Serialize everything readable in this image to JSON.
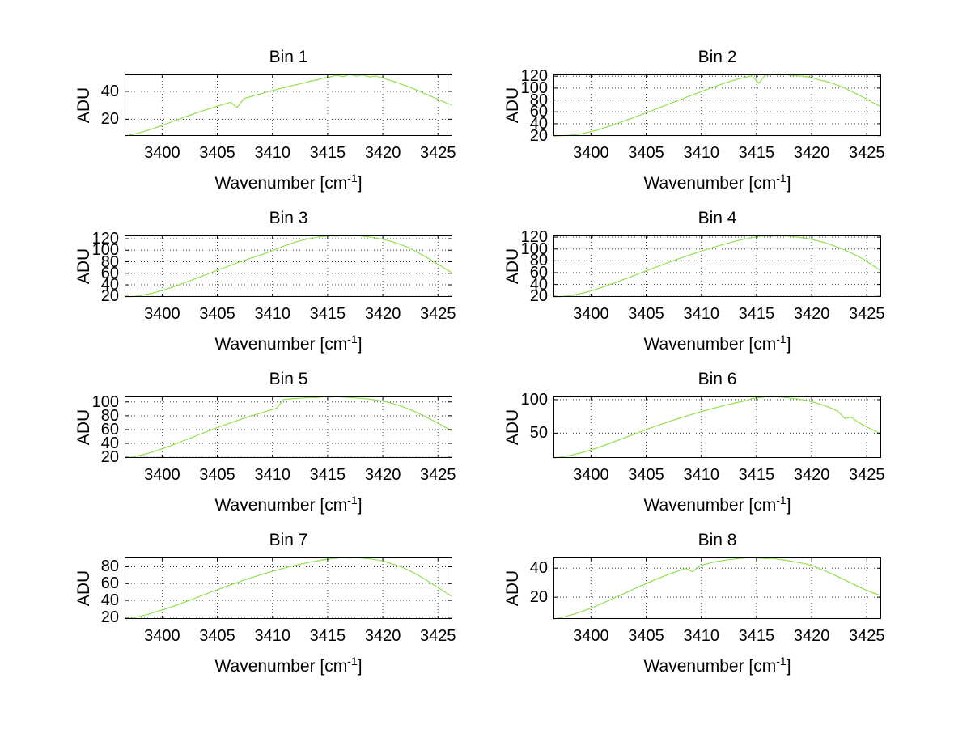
{
  "figure": {
    "background_color": "#ffffff",
    "line_color": "#90e050",
    "grid_color": "#404040",
    "axis_color": "#000000"
  },
  "chart_data": {
    "type": "line",
    "layout": "8 subplots (4 rows x 2 columns)",
    "grid": "on, dotted",
    "legend": "none",
    "xlabel_prefix": "Wavenumber [cm",
    "xlabel_sup": "-1",
    "xlabel_suffix": "]",
    "ylabel": "ADU",
    "xticks": [
      3400,
      3405,
      3410,
      3415,
      3420,
      3425
    ],
    "xlim": [
      3396.6,
      3426.3
    ],
    "x": [
      3396.6,
      3397.2,
      3397.8,
      3398.4,
      3399.0,
      3399.6,
      3400.2,
      3400.8,
      3401.4,
      3402.0,
      3402.6,
      3403.2,
      3403.8,
      3404.4,
      3405.0,
      3405.6,
      3406.2,
      3406.8,
      3407.4,
      3408.0,
      3408.6,
      3409.2,
      3409.8,
      3410.4,
      3411.0,
      3411.6,
      3412.2,
      3412.8,
      3413.4,
      3414.0,
      3414.6,
      3415.2,
      3415.8,
      3416.4,
      3417.0,
      3417.6,
      3418.2,
      3418.8,
      3419.4,
      3420.0,
      3420.6,
      3421.2,
      3421.8,
      3422.4,
      3423.0,
      3423.6,
      3424.2,
      3424.8,
      3425.4,
      3426.0,
      3426.3
    ],
    "plots": [
      {
        "title": "Bin 1",
        "yticks": [
          20,
          40
        ],
        "ylim": [
          8.0,
          52.2
        ],
        "y": [
          8.0,
          8.9,
          10.0,
          11.3,
          12.8,
          14.4,
          16.1,
          17.9,
          19.7,
          21.4,
          23.1,
          24.8,
          26.4,
          27.9,
          29.4,
          30.8,
          32.2,
          28.5,
          34.8,
          36.2,
          37.6,
          38.9,
          40.2,
          41.4,
          42.6,
          43.8,
          44.9,
          46.0,
          47.3,
          48.2,
          49.6,
          50.3,
          51.6,
          50.6,
          52.2,
          50.9,
          51.8,
          50.4,
          51.1,
          49.6,
          48.2,
          46.6,
          44.9,
          43.1,
          41.2,
          39.2,
          37.1,
          35.0,
          32.9,
          30.9,
          30.1
        ]
      },
      {
        "title": "Bin 2",
        "yticks": [
          20,
          40,
          60,
          80,
          100,
          120
        ],
        "ylim": [
          19.5,
          123.0
        ],
        "y": [
          19.5,
          19.8,
          20.4,
          21.3,
          22.8,
          24.9,
          27.6,
          30.8,
          34.3,
          38.0,
          41.9,
          45.9,
          50.0,
          54.2,
          58.4,
          62.7,
          67.0,
          71.3,
          75.7,
          80.0,
          84.3,
          88.6,
          92.8,
          97.0,
          101.0,
          105.0,
          108.8,
          112.4,
          115.6,
          118.3,
          121.0,
          108.0,
          121.9,
          122.6,
          123.0,
          122.4,
          121.5,
          120.6,
          119.5,
          118.0,
          113.9,
          112.0,
          108.5,
          104.5,
          99.8,
          94.6,
          89.0,
          83.2,
          77.3,
          71.3,
          68.4
        ]
      },
      {
        "title": "Bin 3",
        "yticks": [
          20,
          40,
          60,
          80,
          100,
          120
        ],
        "ylim": [
          19.0,
          125.6
        ],
        "y": [
          19.0,
          19.6,
          20.8,
          22.6,
          25.0,
          28.0,
          31.4,
          35.2,
          39.2,
          43.4,
          47.7,
          52.0,
          56.4,
          60.8,
          65.2,
          69.5,
          73.8,
          78.0,
          82.1,
          86.0,
          89.7,
          93.2,
          97.5,
          102.5,
          107.0,
          111.0,
          114.6,
          117.7,
          120.3,
          122.4,
          124.0,
          125.1,
          124.3,
          125.6,
          124.8,
          125.3,
          124.2,
          123.0,
          121.3,
          119.0,
          116.1,
          112.6,
          108.5,
          103.9,
          97.5,
          91.5,
          85.0,
          78.2,
          71.2,
          64.0,
          60.4
        ]
      },
      {
        "title": "Bin 4",
        "yticks": [
          20,
          40,
          60,
          80,
          100,
          120
        ],
        "ylim": [
          19.0,
          122.9
        ],
        "y": [
          19.0,
          19.5,
          20.6,
          22.2,
          24.4,
          27.2,
          30.4,
          34.0,
          37.8,
          41.8,
          45.9,
          50.1,
          54.4,
          58.7,
          63.0,
          67.3,
          71.5,
          75.7,
          79.8,
          83.8,
          87.7,
          91.5,
          95.2,
          98.8,
          102.3,
          105.6,
          108.8,
          111.8,
          114.6,
          117.1,
          119.3,
          121.1,
          122.4,
          121.6,
          122.9,
          122.0,
          121.2,
          120.0,
          118.3,
          116.2,
          113.6,
          110.5,
          106.9,
          102.8,
          98.2,
          93.1,
          87.6,
          81.7,
          74.0,
          66.5,
          63.0
        ]
      },
      {
        "title": "Bin 5",
        "yticks": [
          20,
          40,
          60,
          80,
          100
        ],
        "ylim": [
          19.0,
          107.9
        ],
        "y": [
          19.0,
          20.2,
          22.0,
          24.3,
          27.0,
          30.0,
          33.3,
          36.8,
          40.4,
          44.1,
          47.9,
          51.7,
          55.5,
          59.2,
          62.8,
          66.3,
          69.7,
          73.0,
          76.2,
          79.3,
          82.3,
          85.2,
          88.0,
          91.0,
          103.5,
          104.5,
          105.2,
          105.8,
          106.5,
          106.0,
          107.5,
          106.8,
          107.9,
          107.0,
          106.3,
          105.8,
          105.0,
          104.0,
          102.8,
          101.2,
          99.0,
          96.3,
          93.0,
          89.3,
          85.2,
          80.8,
          76.0,
          71.0,
          65.8,
          60.4,
          57.6
        ]
      },
      {
        "title": "Bin 6",
        "yticks": [
          50,
          100
        ],
        "ylim": [
          13.0,
          104.8
        ],
        "y": [
          13.0,
          14.2,
          15.8,
          17.8,
          20.2,
          23.0,
          26.1,
          29.4,
          32.9,
          36.5,
          40.2,
          44.0,
          47.8,
          51.5,
          55.2,
          58.8,
          62.3,
          65.7,
          69.0,
          72.2,
          75.3,
          78.3,
          81.2,
          84.0,
          86.7,
          89.3,
          91.8,
          94.1,
          96.3,
          98.3,
          101.5,
          103.0,
          104.2,
          104.8,
          103.9,
          103.2,
          102.0,
          100.9,
          99.2,
          97.0,
          94.2,
          90.8,
          87.0,
          82.5,
          72.0,
          74.0,
          66.5,
          61.0,
          56.0,
          51.0,
          49.0
        ]
      },
      {
        "title": "Bin 7",
        "yticks": [
          20,
          40,
          60,
          80
        ],
        "ylim": [
          18.0,
          91.0
        ],
        "y": [
          18.0,
          19.1,
          20.6,
          22.4,
          24.5,
          27.3,
          29.3,
          32.0,
          34.8,
          37.7,
          40.7,
          43.7,
          46.7,
          49.7,
          52.7,
          55.6,
          58.5,
          61.3,
          64.0,
          66.6,
          69.1,
          71.5,
          73.8,
          76.0,
          78.1,
          80.1,
          82.0,
          83.8,
          85.4,
          86.9,
          88.2,
          89.3,
          90.2,
          90.9,
          90.3,
          91.0,
          90.1,
          89.4,
          88.3,
          86.9,
          84.5,
          82.0,
          79.0,
          75.5,
          71.5,
          67.0,
          62.0,
          57.0,
          52.0,
          47.0,
          44.5
        ]
      },
      {
        "title": "Bin 8",
        "yticks": [
          20,
          40
        ],
        "ylim": [
          5.0,
          47.4
        ],
        "y": [
          5.0,
          5.8,
          6.9,
          8.2,
          9.7,
          11.3,
          13.1,
          15.0,
          17.0,
          19.0,
          21.1,
          23.2,
          25.3,
          27.4,
          29.4,
          31.4,
          33.3,
          35.1,
          36.8,
          38.4,
          39.8,
          37.5,
          41.2,
          42.8,
          44.0,
          44.9,
          45.6,
          46.2,
          46.7,
          47.1,
          47.4,
          47.0,
          46.6,
          46.9,
          46.1,
          45.5,
          44.8,
          44.0,
          43.1,
          42.0,
          40.0,
          38.2,
          36.2,
          34.1,
          31.9,
          29.7,
          27.5,
          25.4,
          23.4,
          21.8,
          21.2
        ]
      }
    ]
  }
}
